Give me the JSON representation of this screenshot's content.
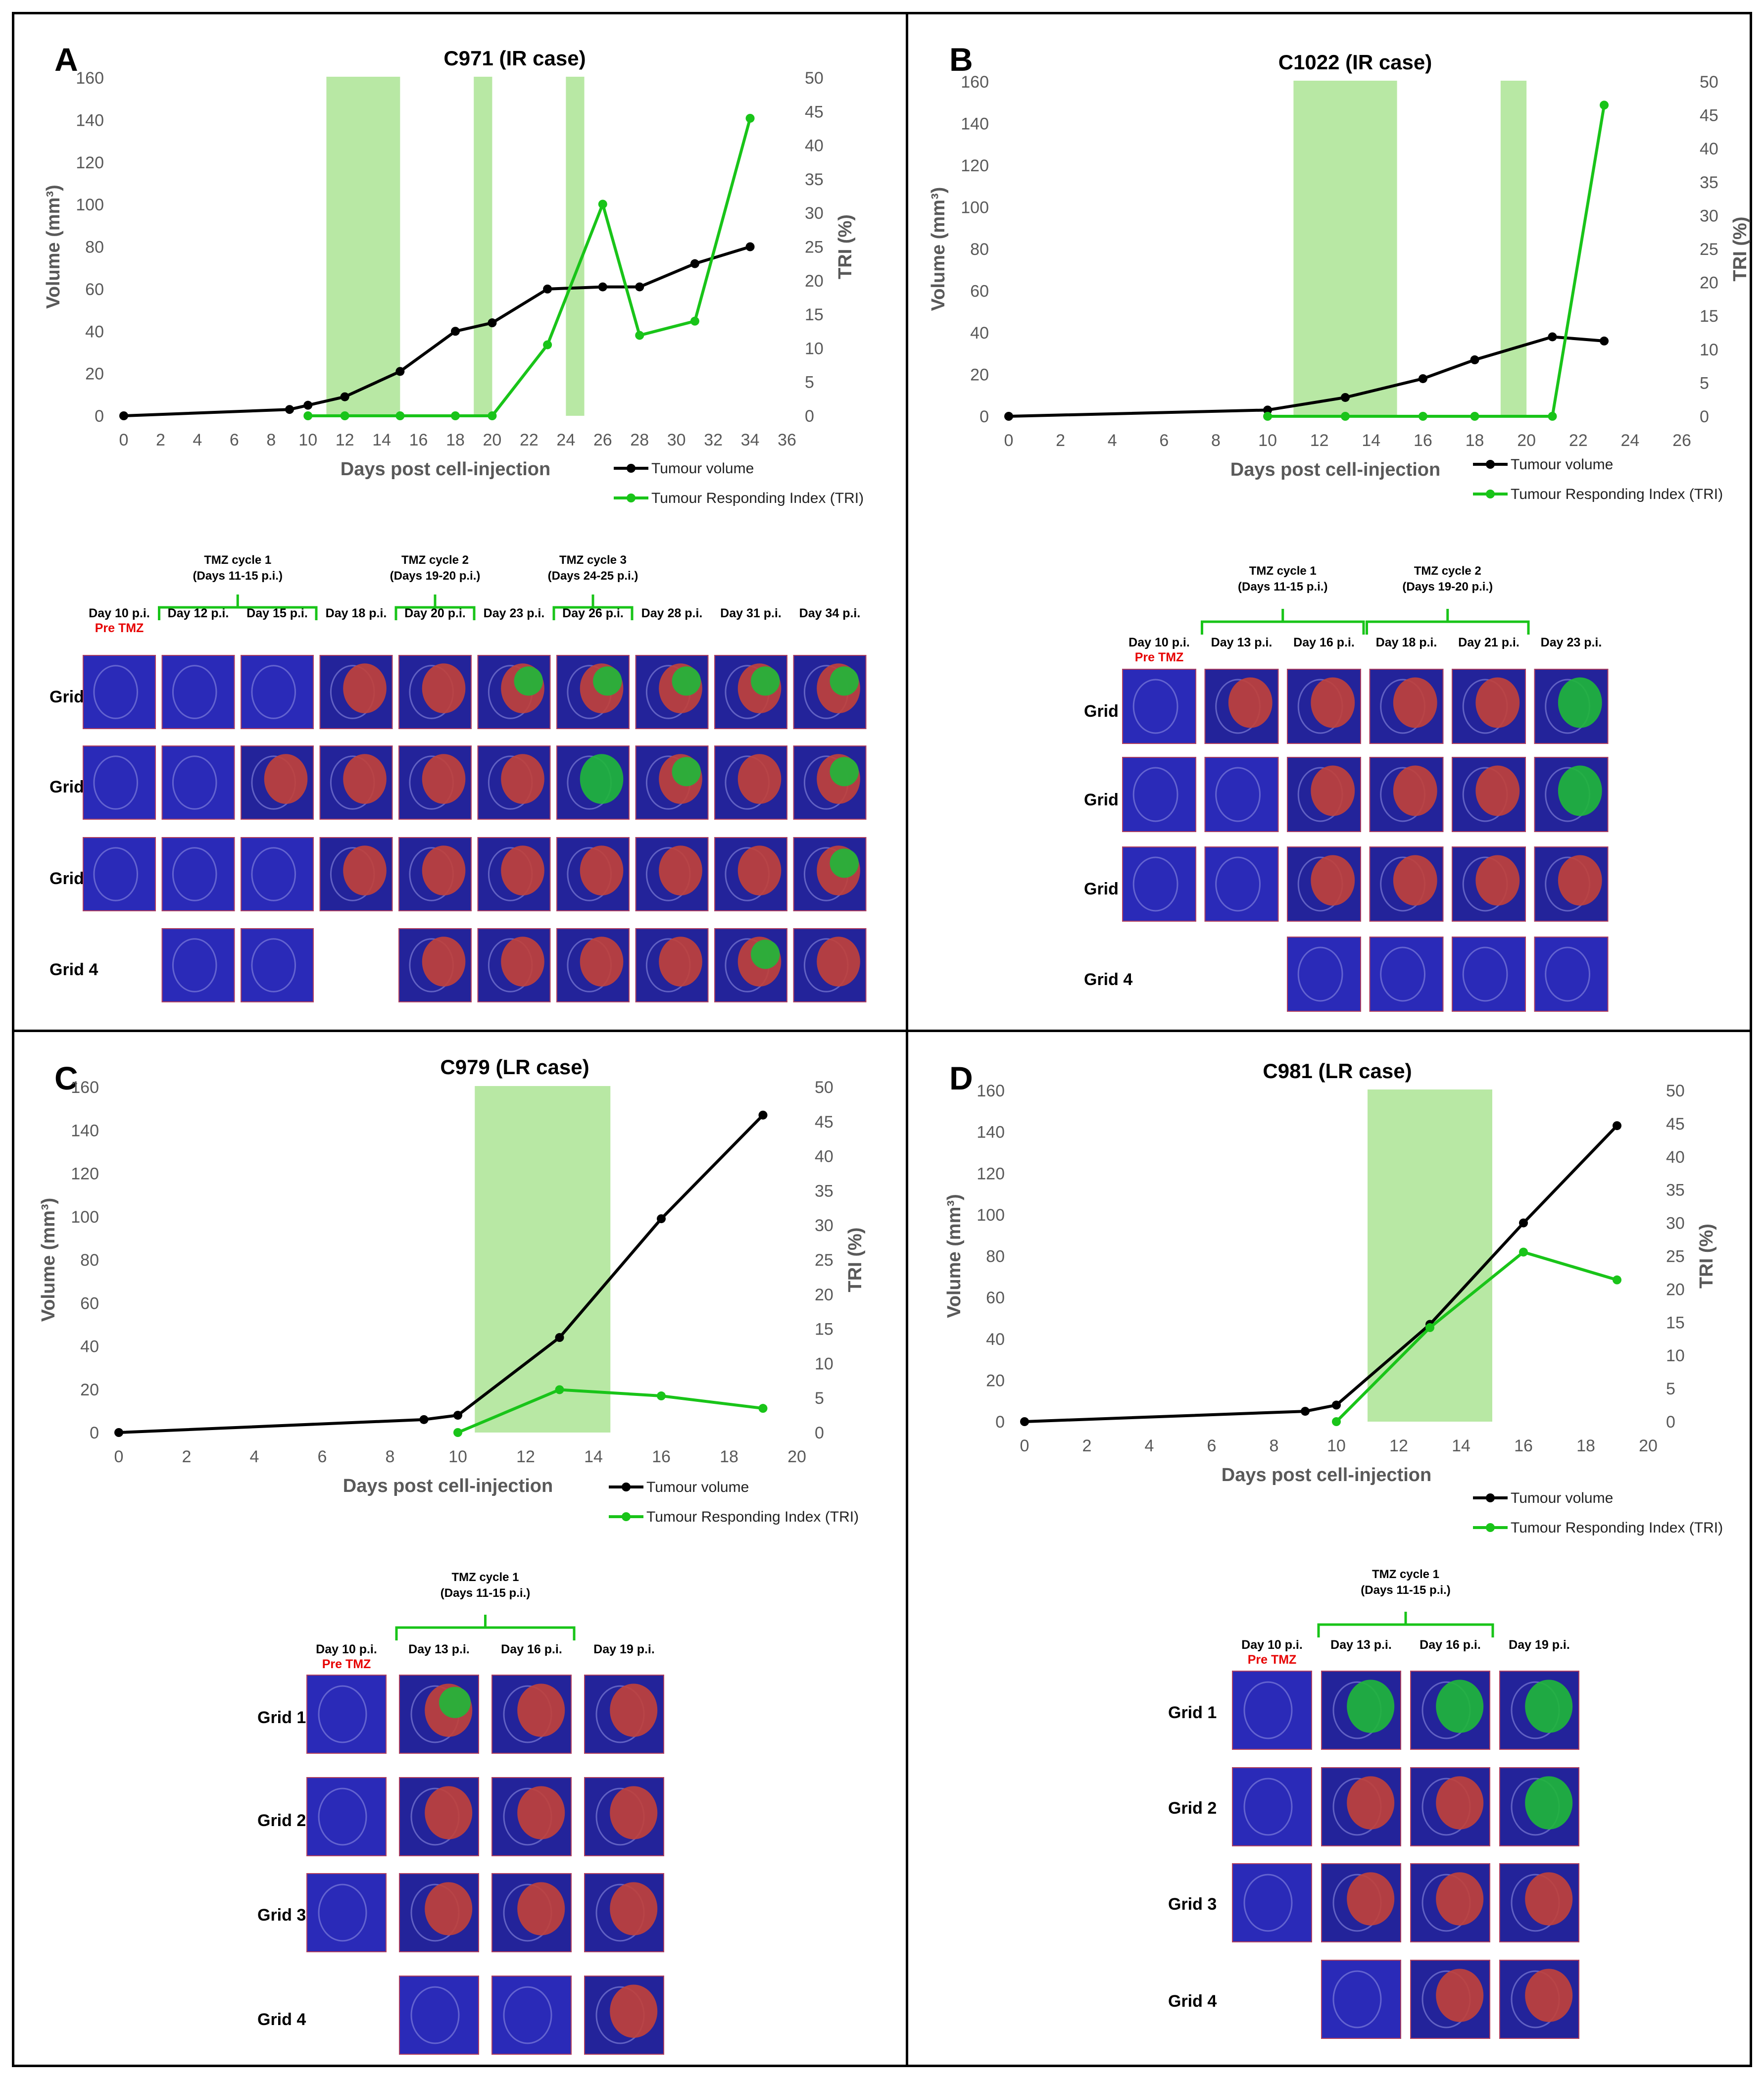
{
  "figure": {
    "colors": {
      "volume_line": "#000000",
      "tri_line": "#19c419",
      "tmz_band": "#b8e8a4",
      "bracket": "#19c419",
      "pre_tmz": "#e60000",
      "axis_text": "#595959"
    },
    "legend": {
      "volume": "Tumour volume",
      "tri": "Tumour Responding Index (TRI)"
    },
    "pre_tmz_label": "Pre TMZ",
    "grid_labels": [
      "Grid 1",
      "Grid 2",
      "Grid 3",
      "Grid 4"
    ]
  },
  "chart_data": [
    {
      "type": "line",
      "panel": "A",
      "title": "C971 (IR case)",
      "xlabel": "Days post cell-injection",
      "ylabel": "Volume (mm³)",
      "y2label": "TRI (%)",
      "xlim": [
        0,
        36
      ],
      "xticks": [
        0,
        2,
        4,
        6,
        8,
        10,
        12,
        14,
        16,
        18,
        20,
        22,
        24,
        26,
        28,
        30,
        32,
        34,
        36
      ],
      "ylim": [
        0,
        160
      ],
      "yticks": [
        0,
        20,
        40,
        60,
        80,
        100,
        120,
        140,
        160
      ],
      "y2lim": [
        0,
        50
      ],
      "y2ticks": [
        0,
        5,
        10,
        15,
        20,
        25,
        30,
        35,
        40,
        45,
        50
      ],
      "tmz_periods": [
        [
          11,
          15
        ],
        [
          19,
          20
        ],
        [
          24,
          25
        ]
      ],
      "series": [
        {
          "name": "Tumour volume",
          "axis": "left",
          "x": [
            0,
            9,
            10,
            12,
            15,
            18,
            20,
            23,
            26,
            28,
            31,
            34
          ],
          "values": [
            0,
            3,
            5,
            9,
            21,
            40,
            44,
            60,
            61,
            61,
            72,
            80
          ]
        },
        {
          "name": "Tumour Responding Index (TRI)",
          "axis": "right",
          "x": [
            10,
            12,
            15,
            18,
            20,
            23,
            26,
            28,
            31,
            34
          ],
          "values": [
            0,
            0,
            0,
            0,
            0,
            10.5,
            31.3,
            11.9,
            14,
            44
          ]
        }
      ],
      "cycles": [
        {
          "title": "TMZ cycle 1",
          "days": "(Days 11-15 p.i.)",
          "cols": [
            1,
            2
          ]
        },
        {
          "title": "TMZ cycle 2",
          "days": "(Days 19-20 p.i.)",
          "cols": [
            4,
            4
          ]
        },
        {
          "title": "TMZ cycle 3",
          "days": "(Days 24-25 p.i.)",
          "cols": [
            6,
            6
          ]
        }
      ],
      "day_labels": [
        "Day 10 p.i.",
        "Day 12 p.i.",
        "Day 15 p.i.",
        "Day 18 p.i.",
        "Day 20 p.i.",
        "Day 23 p.i.",
        "Day 26 p.i.",
        "Day 28 p.i.",
        "Day 31 p.i.",
        "Day 34 p.i."
      ],
      "thumbnails": [
        [
          "b",
          "b",
          "b",
          "r",
          "r",
          "rg",
          "rg",
          "rg",
          "rg",
          "rg"
        ],
        [
          "b",
          "b",
          "r",
          "r",
          "r",
          "r",
          "g",
          "rg",
          "r",
          "rg"
        ],
        [
          "b",
          "b",
          "b",
          "r",
          "r",
          "r",
          "r",
          "r",
          "r",
          "rg"
        ],
        [
          "",
          "b",
          "b",
          "",
          "r",
          "r",
          "r",
          "r",
          "rg",
          "r"
        ]
      ]
    },
    {
      "type": "line",
      "panel": "B",
      "title": "C1022 (IR case)",
      "xlabel": "Days post cell-injection",
      "ylabel": "Volume (mm³)",
      "y2label": "TRI (%)",
      "xlim": [
        0,
        26
      ],
      "xticks": [
        0,
        2,
        4,
        6,
        8,
        10,
        12,
        14,
        16,
        18,
        20,
        22,
        24,
        26
      ],
      "ylim": [
        0,
        160
      ],
      "yticks": [
        0,
        20,
        40,
        60,
        80,
        100,
        120,
        140,
        160
      ],
      "y2lim": [
        0,
        50
      ],
      "y2ticks": [
        0,
        5,
        10,
        15,
        20,
        25,
        30,
        35,
        40,
        45,
        50
      ],
      "tmz_periods": [
        [
          11,
          15
        ],
        [
          19,
          20
        ]
      ],
      "series": [
        {
          "name": "Tumour volume",
          "axis": "left",
          "x": [
            0,
            10,
            13,
            16,
            18,
            21,
            23
          ],
          "values": [
            0,
            3,
            9,
            18,
            27,
            38,
            36
          ]
        },
        {
          "name": "Tumour Responding Index (TRI)",
          "axis": "right",
          "x": [
            10,
            13,
            16,
            18,
            21,
            23
          ],
          "values": [
            0,
            0,
            0,
            0,
            0,
            46.5
          ]
        }
      ],
      "cycles": [
        {
          "title": "TMZ cycle 1",
          "days": "(Days 11-15 p.i.)",
          "cols": [
            1,
            2
          ]
        },
        {
          "title": "TMZ cycle 2",
          "days": "(Days 19-20 p.i.)",
          "cols": [
            3,
            4
          ]
        }
      ],
      "day_labels": [
        "Day 10 p.i.",
        "Day 13 p.i.",
        "Day 16 p.i.",
        "Day 18 p.i.",
        "Day 21 p.i.",
        "Day 23 p.i."
      ],
      "thumbnails": [
        [
          "b",
          "r",
          "r",
          "r",
          "r",
          "g"
        ],
        [
          "b",
          "b",
          "r",
          "r",
          "r",
          "g"
        ],
        [
          "b",
          "b",
          "r",
          "r",
          "r",
          "r"
        ],
        [
          "",
          "",
          "b",
          "b",
          "b",
          "b"
        ]
      ]
    },
    {
      "type": "line",
      "panel": "C",
      "title": "C979 (LR case)",
      "xlabel": "Days post cell-injection",
      "ylabel": "Volume (mm³)",
      "y2label": "TRI (%)",
      "xlim": [
        0,
        20
      ],
      "xticks": [
        0,
        2,
        4,
        6,
        8,
        10,
        12,
        14,
        16,
        18,
        20
      ],
      "ylim": [
        0,
        160
      ],
      "yticks": [
        0,
        20,
        40,
        60,
        80,
        100,
        120,
        140,
        160
      ],
      "y2lim": [
        0,
        50
      ],
      "y2ticks": [
        0,
        5,
        10,
        15,
        20,
        25,
        30,
        35,
        40,
        45,
        50
      ],
      "tmz_periods": [
        [
          10.5,
          14.5
        ]
      ],
      "series": [
        {
          "name": "Tumour volume",
          "axis": "left",
          "x": [
            0,
            9,
            10,
            13,
            16,
            19
          ],
          "values": [
            0,
            6,
            8,
            44,
            99,
            147
          ]
        },
        {
          "name": "Tumour Responding Index (TRI)",
          "axis": "right",
          "x": [
            10,
            13,
            16,
            19
          ],
          "values": [
            0,
            6.2,
            5.3,
            3.5
          ]
        }
      ],
      "cycles": [
        {
          "title": "TMZ cycle 1",
          "days": "(Days 11-15 p.i.)",
          "cols": [
            1,
            2
          ]
        }
      ],
      "day_labels": [
        "Day 10 p.i.",
        "Day 13 p.i.",
        "Day 16 p.i.",
        "Day 19 p.i."
      ],
      "thumbnails": [
        [
          "b",
          "rg",
          "r",
          "r"
        ],
        [
          "b",
          "r",
          "r",
          "r"
        ],
        [
          "b",
          "r",
          "r",
          "r"
        ],
        [
          "",
          "b",
          "b",
          "r"
        ]
      ]
    },
    {
      "type": "line",
      "panel": "D",
      "title": "C981 (LR case)",
      "xlabel": "Days post cell-injection",
      "ylabel": "Volume (mm³)",
      "y2label": "TRI (%)",
      "xlim": [
        0,
        20
      ],
      "xticks": [
        0,
        2,
        4,
        6,
        8,
        10,
        12,
        14,
        16,
        18,
        20
      ],
      "ylim": [
        0,
        160
      ],
      "yticks": [
        0,
        20,
        40,
        60,
        80,
        100,
        120,
        140,
        160
      ],
      "y2lim": [
        0,
        50
      ],
      "y2ticks": [
        0,
        5,
        10,
        15,
        20,
        25,
        30,
        35,
        40,
        45,
        50
      ],
      "tmz_periods": [
        [
          11,
          15
        ]
      ],
      "series": [
        {
          "name": "Tumour volume",
          "axis": "left",
          "x": [
            0,
            9,
            10,
            13,
            16,
            19
          ],
          "values": [
            0,
            5,
            8,
            47,
            96,
            143
          ]
        },
        {
          "name": "Tumour Responding Index (TRI)",
          "axis": "right",
          "x": [
            10,
            13,
            16,
            19
          ],
          "values": [
            0,
            14.2,
            25.6,
            21.4
          ]
        }
      ],
      "cycles": [
        {
          "title": "TMZ cycle 1",
          "days": "(Days 11-15 p.i.)",
          "cols": [
            1,
            2
          ]
        }
      ],
      "day_labels": [
        "Day 10 p.i.",
        "Day 13 p.i.",
        "Day 16 p.i.",
        "Day 19 p.i."
      ],
      "thumbnails": [
        [
          "b",
          "g",
          "g",
          "g"
        ],
        [
          "b",
          "r",
          "r",
          "g"
        ],
        [
          "b",
          "r",
          "r",
          "r"
        ],
        [
          "",
          "b",
          "r",
          "r"
        ]
      ]
    }
  ]
}
